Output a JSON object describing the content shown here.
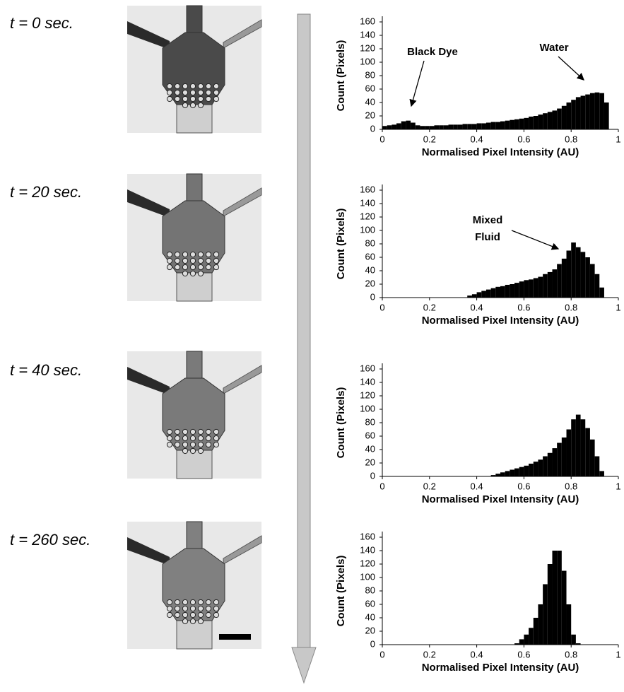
{
  "chart_data": [
    {
      "type": "histogram",
      "title": "t = 0 sec.",
      "x_label": "Normalised Pixel Intensity (AU)",
      "y_label": "Count (Pixels)",
      "bins": [
        0,
        0.02,
        0.04,
        0.06,
        0.08,
        0.1,
        0.12,
        0.14,
        0.16,
        0.18,
        0.2,
        0.22,
        0.24,
        0.26,
        0.28,
        0.3,
        0.32,
        0.34,
        0.36,
        0.38,
        0.4,
        0.42,
        0.44,
        0.46,
        0.48,
        0.5,
        0.52,
        0.54,
        0.56,
        0.58,
        0.6,
        0.62,
        0.64,
        0.66,
        0.68,
        0.7,
        0.72,
        0.74,
        0.76,
        0.78,
        0.8,
        0.82,
        0.84,
        0.86,
        0.88,
        0.9,
        0.92,
        0.94,
        0.96,
        0.98,
        1
      ],
      "values": [
        5,
        6,
        7,
        9,
        12,
        13,
        10,
        6,
        5,
        5,
        5,
        6,
        6,
        6,
        7,
        7,
        7,
        8,
        8,
        8,
        9,
        9,
        10,
        11,
        11,
        12,
        13,
        14,
        15,
        16,
        17,
        19,
        20,
        22,
        24,
        26,
        28,
        31,
        35,
        40,
        44,
        48,
        50,
        52,
        54,
        55,
        54,
        40,
        0,
        0
      ],
      "color": "#000000",
      "xlim": [
        0,
        1
      ],
      "ylim": [
        0,
        160
      ],
      "xticks": [
        0,
        0.2,
        0.4,
        0.6,
        0.8,
        1
      ],
      "yticks": [
        0,
        20,
        40,
        60,
        80,
        100,
        120,
        140,
        160
      ],
      "annotations": [
        {
          "text": [
            "Black Dye"
          ]
        },
        {
          "text": [
            "Water"
          ]
        }
      ]
    },
    {
      "type": "histogram",
      "title": "t = 20 sec.",
      "x_label": "Normalised Pixel Intensity (AU)",
      "y_label": "Count (Pixels)",
      "bins": [
        0,
        0.02,
        0.04,
        0.06,
        0.08,
        0.1,
        0.12,
        0.14,
        0.16,
        0.18,
        0.2,
        0.22,
        0.24,
        0.26,
        0.28,
        0.3,
        0.32,
        0.34,
        0.36,
        0.38,
        0.4,
        0.42,
        0.44,
        0.46,
        0.48,
        0.5,
        0.52,
        0.54,
        0.56,
        0.58,
        0.6,
        0.62,
        0.64,
        0.66,
        0.68,
        0.7,
        0.72,
        0.74,
        0.76,
        0.78,
        0.8,
        0.82,
        0.84,
        0.86,
        0.88,
        0.9,
        0.92,
        0.94,
        0.96,
        0.98,
        1
      ],
      "values": [
        0,
        0,
        0,
        0,
        0,
        0,
        0,
        0,
        0,
        0,
        0,
        0,
        0,
        0,
        0,
        0,
        0,
        0,
        3,
        5,
        8,
        10,
        12,
        14,
        16,
        17,
        19,
        20,
        22,
        24,
        26,
        27,
        29,
        31,
        35,
        38,
        42,
        50,
        58,
        70,
        82,
        75,
        68,
        60,
        50,
        35,
        15,
        0,
        0,
        0
      ],
      "color": "#000000",
      "xlim": [
        0,
        1
      ],
      "ylim": [
        0,
        160
      ],
      "xticks": [
        0,
        0.2,
        0.4,
        0.6,
        0.8,
        1
      ],
      "yticks": [
        0,
        20,
        40,
        60,
        80,
        100,
        120,
        140,
        160
      ],
      "annotations": [
        {
          "text": [
            "Mixed",
            "Fluid"
          ]
        }
      ]
    },
    {
      "type": "histogram",
      "title": "t = 40 sec.",
      "x_label": "Normalised Pixel Intensity (AU)",
      "y_label": "Count (Pixels)",
      "bins": [
        0,
        0.02,
        0.04,
        0.06,
        0.08,
        0.1,
        0.12,
        0.14,
        0.16,
        0.18,
        0.2,
        0.22,
        0.24,
        0.26,
        0.28,
        0.3,
        0.32,
        0.34,
        0.36,
        0.38,
        0.4,
        0.42,
        0.44,
        0.46,
        0.48,
        0.5,
        0.52,
        0.54,
        0.56,
        0.58,
        0.6,
        0.62,
        0.64,
        0.66,
        0.68,
        0.7,
        0.72,
        0.74,
        0.76,
        0.78,
        0.8,
        0.82,
        0.84,
        0.86,
        0.88,
        0.9,
        0.92,
        0.94,
        0.96,
        0.98,
        1
      ],
      "values": [
        0,
        0,
        0,
        0,
        0,
        0,
        0,
        0,
        0,
        0,
        0,
        0,
        0,
        0,
        0,
        0,
        0,
        0,
        0,
        0,
        0,
        0,
        0,
        2,
        4,
        6,
        8,
        10,
        12,
        14,
        16,
        19,
        22,
        25,
        30,
        35,
        42,
        50,
        58,
        70,
        85,
        92,
        85,
        72,
        55,
        30,
        8,
        0,
        0,
        0
      ],
      "color": "#000000",
      "xlim": [
        0,
        1
      ],
      "ylim": [
        0,
        160
      ],
      "xticks": [
        0,
        0.2,
        0.4,
        0.6,
        0.8,
        1
      ],
      "yticks": [
        0,
        20,
        40,
        60,
        80,
        100,
        120,
        140,
        160
      ]
    },
    {
      "type": "histogram",
      "title": "t = 260 sec.",
      "x_label": "Normalised Pixel Intensity (AU)",
      "y_label": "Count (Pixels)",
      "bins": [
        0,
        0.02,
        0.04,
        0.06,
        0.08,
        0.1,
        0.12,
        0.14,
        0.16,
        0.18,
        0.2,
        0.22,
        0.24,
        0.26,
        0.28,
        0.3,
        0.32,
        0.34,
        0.36,
        0.38,
        0.4,
        0.42,
        0.44,
        0.46,
        0.48,
        0.5,
        0.52,
        0.54,
        0.56,
        0.58,
        0.6,
        0.62,
        0.64,
        0.66,
        0.68,
        0.7,
        0.72,
        0.74,
        0.76,
        0.78,
        0.8,
        0.82,
        0.84,
        0.86,
        0.88,
        0.9,
        0.92,
        0.94,
        0.96,
        0.98,
        1
      ],
      "values": [
        0,
        0,
        0,
        0,
        0,
        0,
        0,
        0,
        0,
        0,
        0,
        0,
        0,
        0,
        0,
        0,
        0,
        0,
        0,
        0,
        0,
        0,
        0,
        0,
        0,
        0,
        0,
        0,
        2,
        8,
        15,
        25,
        40,
        60,
        90,
        120,
        140,
        140,
        110,
        60,
        15,
        2,
        0,
        0,
        0,
        0,
        0,
        0,
        0,
        0
      ],
      "color": "#000000",
      "xlim": [
        0,
        1
      ],
      "ylim": [
        0,
        160
      ],
      "xticks": [
        0,
        0.2,
        0.4,
        0.6,
        0.8,
        1
      ],
      "yticks": [
        0,
        20,
        40,
        60,
        80,
        100,
        120,
        140,
        160
      ]
    }
  ]
}
